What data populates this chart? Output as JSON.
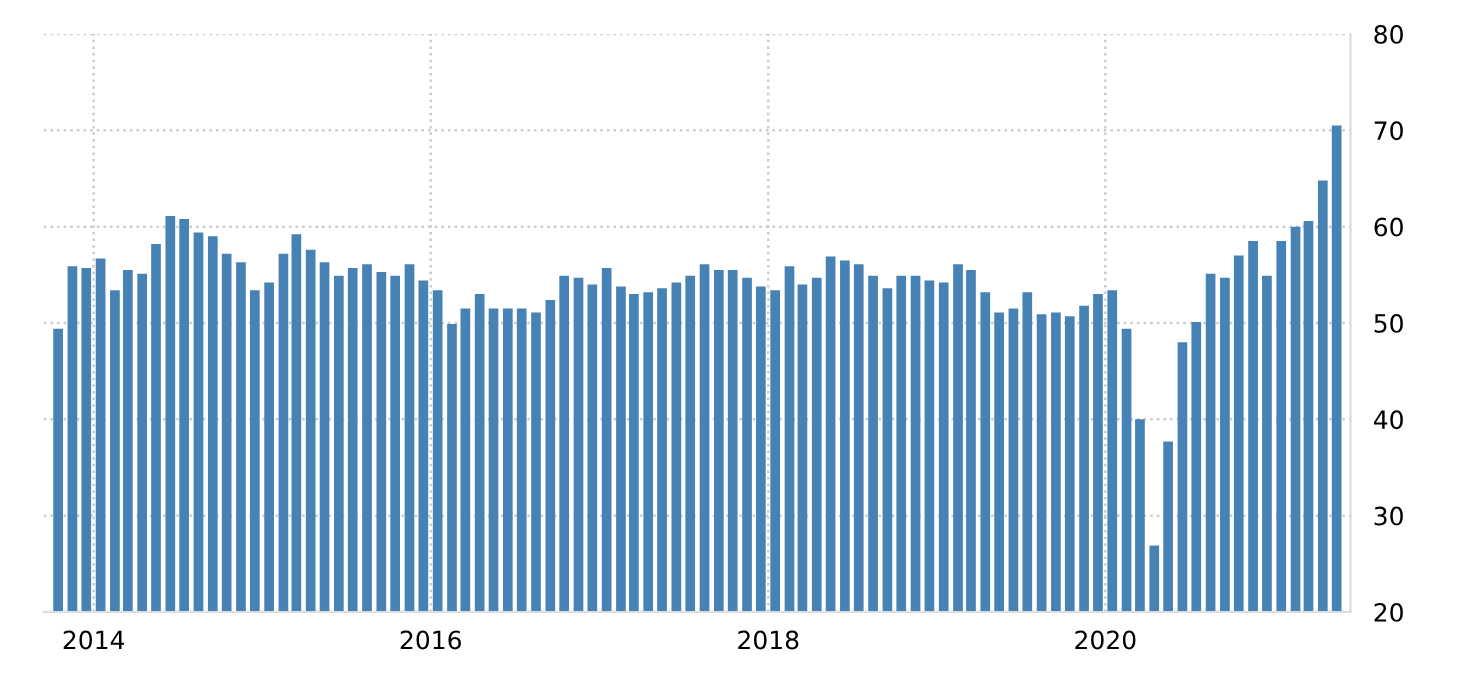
{
  "chart_data": {
    "type": "bar",
    "x": [
      "2013-10",
      "2013-11",
      "2013-12",
      "2014-01",
      "2014-02",
      "2014-03",
      "2014-04",
      "2014-05",
      "2014-06",
      "2014-07",
      "2014-08",
      "2014-09",
      "2014-10",
      "2014-11",
      "2014-12",
      "2015-01",
      "2015-02",
      "2015-03",
      "2015-04",
      "2015-05",
      "2015-06",
      "2015-07",
      "2015-08",
      "2015-09",
      "2015-10",
      "2015-11",
      "2015-12",
      "2016-01",
      "2016-02",
      "2016-03",
      "2016-04",
      "2016-05",
      "2016-06",
      "2016-07",
      "2016-08",
      "2016-09",
      "2016-10",
      "2016-11",
      "2016-12",
      "2017-01",
      "2017-02",
      "2017-03",
      "2017-04",
      "2017-05",
      "2017-06",
      "2017-07",
      "2017-08",
      "2017-09",
      "2017-10",
      "2017-11",
      "2017-12",
      "2018-01",
      "2018-02",
      "2018-03",
      "2018-04",
      "2018-05",
      "2018-06",
      "2018-07",
      "2018-08",
      "2018-09",
      "2018-10",
      "2018-11",
      "2018-12",
      "2019-01",
      "2019-02",
      "2019-03",
      "2019-04",
      "2019-05",
      "2019-06",
      "2019-07",
      "2019-08",
      "2019-09",
      "2019-10",
      "2019-11",
      "2019-12",
      "2020-01",
      "2020-02",
      "2020-03",
      "2020-04",
      "2020-05",
      "2020-06",
      "2020-07",
      "2020-08",
      "2020-09",
      "2020-10",
      "2020-11",
      "2020-12",
      "2021-01",
      "2021-02",
      "2021-03",
      "2021-04",
      "2021-05"
    ],
    "values": [
      49.4,
      55.9,
      55.7,
      56.7,
      53.4,
      55.5,
      55.1,
      58.2,
      61.1,
      60.8,
      59.4,
      59.0,
      57.2,
      56.3,
      53.4,
      54.2,
      57.2,
      59.2,
      57.6,
      56.3,
      54.9,
      55.7,
      56.1,
      55.3,
      54.9,
      56.1,
      54.4,
      53.4,
      49.9,
      51.5,
      53.0,
      51.5,
      51.5,
      51.5,
      51.1,
      52.4,
      54.9,
      54.7,
      54.0,
      55.7,
      53.8,
      53.0,
      53.2,
      53.6,
      54.2,
      54.9,
      56.1,
      55.5,
      55.5,
      54.7,
      53.8,
      53.4,
      55.9,
      54.0,
      54.7,
      56.9,
      56.5,
      56.1,
      54.9,
      53.6,
      54.9,
      54.9,
      54.4,
      54.2,
      56.1,
      55.5,
      53.2,
      51.1,
      51.5,
      53.2,
      50.9,
      51.1,
      50.7,
      51.8,
      53.0,
      53.4,
      49.4,
      40.0,
      26.9,
      37.7,
      48.0,
      50.1,
      55.1,
      54.7,
      57.0,
      58.5,
      54.9,
      58.5,
      60.0,
      60.6,
      64.8,
      70.5
    ],
    "color": "#4682b4",
    "xlim": [
      "2013-09-15",
      "2021-06-15"
    ],
    "xticks": [
      {
        "value": "2014",
        "label": "2014"
      },
      {
        "value": "2016",
        "label": "2016"
      },
      {
        "value": "2018",
        "label": "2018"
      },
      {
        "value": "2020",
        "label": "2020"
      }
    ],
    "ylim": [
      20,
      80
    ],
    "yticks": [
      20,
      30,
      40,
      50,
      60,
      70,
      80
    ],
    "grid": true
  }
}
